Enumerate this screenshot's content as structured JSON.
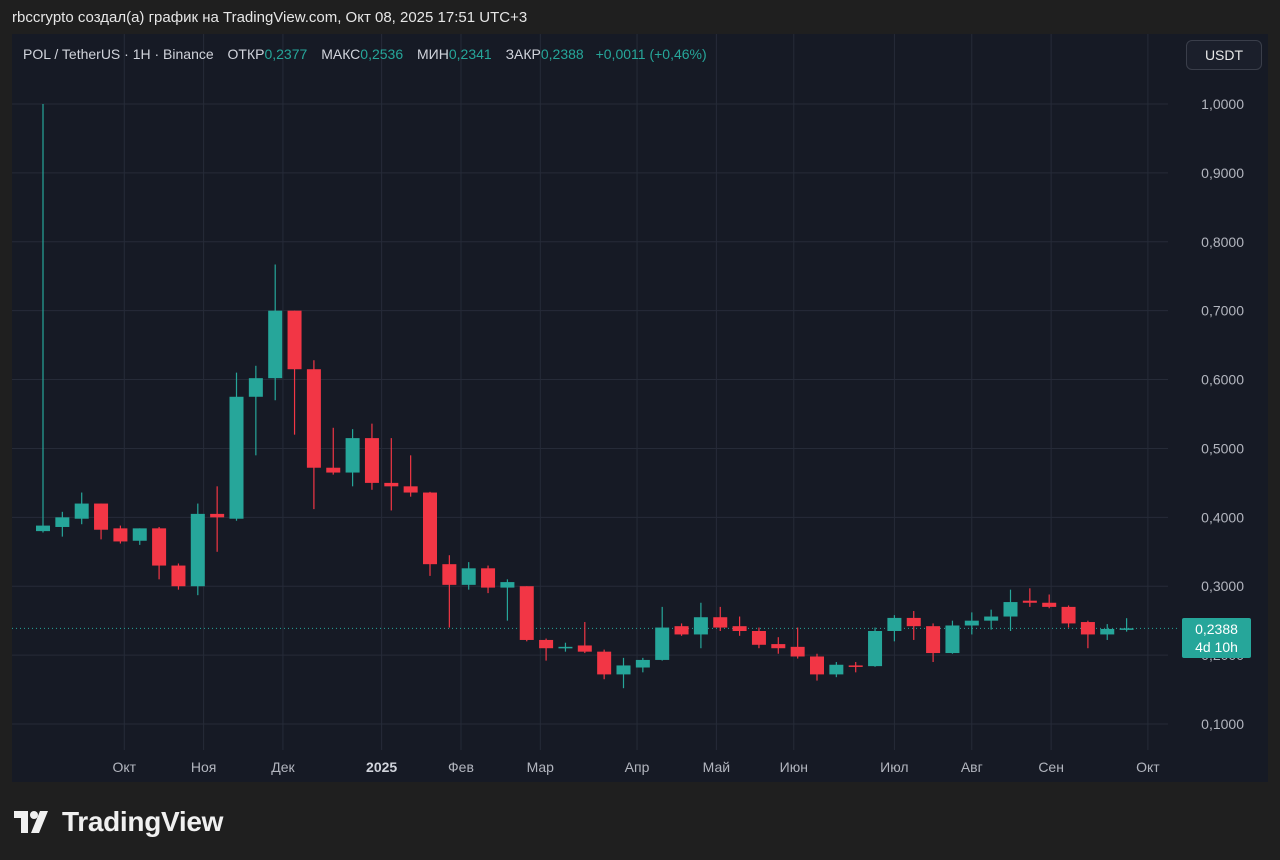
{
  "header": {
    "caption": "rbccrypto создал(а) график на TradingView.com, Окт 08, 2025 17:51 UTC+3"
  },
  "legend": {
    "symbol": "POL / TetherUS · 1H · Binance",
    "open_label": "ОТКР",
    "open_value": "0,2377",
    "high_label": "МАКС",
    "high_value": "0,2536",
    "low_label": "МИН",
    "low_value": "0,2341",
    "close_label": "ЗАКР",
    "close_value": "0,2388",
    "change": "+0,0011 (+0,46%)"
  },
  "currency_button": "USDT",
  "last_price": {
    "price": "0,2388",
    "countdown": "4d 10h",
    "value": 0.2388
  },
  "footer": {
    "brand": "TradingView"
  },
  "colors": {
    "background": "#161a25",
    "grid": "#262b38",
    "up": "#26a69a",
    "down": "#f23645",
    "text": "#b2b5be"
  },
  "chart_data": {
    "type": "candlestick",
    "ylim": [
      0.05,
      1.07
    ],
    "yticks": [
      {
        "value": 1.0,
        "label": "1,0000"
      },
      {
        "value": 0.9,
        "label": "0,9000"
      },
      {
        "value": 0.8,
        "label": "0,8000"
      },
      {
        "value": 0.7,
        "label": "0,7000"
      },
      {
        "value": 0.6,
        "label": "0,6000"
      },
      {
        "value": 0.5,
        "label": "0,5000"
      },
      {
        "value": 0.4,
        "label": "0,4000"
      },
      {
        "value": 0.3,
        "label": "0,3000"
      },
      {
        "value": 0.2,
        "label": "0,2000"
      },
      {
        "value": 0.1,
        "label": "0,1000"
      }
    ],
    "xticks": [
      {
        "index": 4.2,
        "label": "Окт"
      },
      {
        "index": 8.3,
        "label": "Ноя"
      },
      {
        "index": 12.4,
        "label": "Дек"
      },
      {
        "index": 17.5,
        "label": "2025",
        "bold": true
      },
      {
        "index": 21.6,
        "label": "Фев"
      },
      {
        "index": 25.7,
        "label": "Мар"
      },
      {
        "index": 30.7,
        "label": "Апр"
      },
      {
        "index": 34.8,
        "label": "Май"
      },
      {
        "index": 38.8,
        "label": "Июн"
      },
      {
        "index": 44.0,
        "label": "Июл"
      },
      {
        "index": 48.0,
        "label": "Авг"
      },
      {
        "index": 52.1,
        "label": "Сен"
      },
      {
        "index": 57.1,
        "label": "Окт"
      }
    ],
    "candles": [
      {
        "o": 0.38,
        "h": 1.0,
        "l": 0.378,
        "c": 0.388
      },
      {
        "o": 0.386,
        "h": 0.408,
        "l": 0.372,
        "c": 0.4
      },
      {
        "o": 0.398,
        "h": 0.436,
        "l": 0.39,
        "c": 0.42
      },
      {
        "o": 0.42,
        "h": 0.42,
        "l": 0.368,
        "c": 0.382
      },
      {
        "o": 0.384,
        "h": 0.388,
        "l": 0.362,
        "c": 0.365
      },
      {
        "o": 0.366,
        "h": 0.384,
        "l": 0.36,
        "c": 0.384
      },
      {
        "o": 0.384,
        "h": 0.386,
        "l": 0.31,
        "c": 0.33
      },
      {
        "o": 0.33,
        "h": 0.333,
        "l": 0.295,
        "c": 0.3
      },
      {
        "o": 0.3,
        "h": 0.42,
        "l": 0.287,
        "c": 0.405
      },
      {
        "o": 0.405,
        "h": 0.445,
        "l": 0.35,
        "c": 0.4
      },
      {
        "o": 0.398,
        "h": 0.61,
        "l": 0.395,
        "c": 0.575
      },
      {
        "o": 0.575,
        "h": 0.62,
        "l": 0.49,
        "c": 0.602
      },
      {
        "o": 0.602,
        "h": 0.767,
        "l": 0.57,
        "c": 0.7
      },
      {
        "o": 0.7,
        "h": 0.7,
        "l": 0.52,
        "c": 0.615
      },
      {
        "o": 0.615,
        "h": 0.628,
        "l": 0.412,
        "c": 0.472
      },
      {
        "o": 0.472,
        "h": 0.53,
        "l": 0.462,
        "c": 0.465
      },
      {
        "o": 0.465,
        "h": 0.528,
        "l": 0.445,
        "c": 0.515
      },
      {
        "o": 0.515,
        "h": 0.536,
        "l": 0.44,
        "c": 0.45
      },
      {
        "o": 0.45,
        "h": 0.515,
        "l": 0.41,
        "c": 0.445
      },
      {
        "o": 0.445,
        "h": 0.49,
        "l": 0.43,
        "c": 0.436
      },
      {
        "o": 0.436,
        "h": 0.437,
        "l": 0.315,
        "c": 0.332
      },
      {
        "o": 0.332,
        "h": 0.345,
        "l": 0.24,
        "c": 0.302
      },
      {
        "o": 0.302,
        "h": 0.335,
        "l": 0.295,
        "c": 0.326
      },
      {
        "o": 0.326,
        "h": 0.33,
        "l": 0.29,
        "c": 0.298
      },
      {
        "o": 0.298,
        "h": 0.31,
        "l": 0.25,
        "c": 0.306
      },
      {
        "o": 0.3,
        "h": 0.3,
        "l": 0.22,
        "c": 0.222
      },
      {
        "o": 0.222,
        "h": 0.224,
        "l": 0.192,
        "c": 0.21
      },
      {
        "o": 0.21,
        "h": 0.218,
        "l": 0.205,
        "c": 0.212
      },
      {
        "o": 0.214,
        "h": 0.248,
        "l": 0.203,
        "c": 0.205
      },
      {
        "o": 0.205,
        "h": 0.208,
        "l": 0.165,
        "c": 0.172
      },
      {
        "o": 0.172,
        "h": 0.196,
        "l": 0.152,
        "c": 0.185
      },
      {
        "o": 0.182,
        "h": 0.196,
        "l": 0.175,
        "c": 0.193
      },
      {
        "o": 0.193,
        "h": 0.27,
        "l": 0.192,
        "c": 0.24
      },
      {
        "o": 0.242,
        "h": 0.246,
        "l": 0.228,
        "c": 0.23
      },
      {
        "o": 0.23,
        "h": 0.276,
        "l": 0.21,
        "c": 0.255
      },
      {
        "o": 0.255,
        "h": 0.27,
        "l": 0.235,
        "c": 0.24
      },
      {
        "o": 0.242,
        "h": 0.256,
        "l": 0.228,
        "c": 0.235
      },
      {
        "o": 0.235,
        "h": 0.24,
        "l": 0.21,
        "c": 0.215
      },
      {
        "o": 0.216,
        "h": 0.226,
        "l": 0.202,
        "c": 0.21
      },
      {
        "o": 0.212,
        "h": 0.24,
        "l": 0.195,
        "c": 0.198
      },
      {
        "o": 0.198,
        "h": 0.202,
        "l": 0.163,
        "c": 0.172
      },
      {
        "o": 0.172,
        "h": 0.19,
        "l": 0.168,
        "c": 0.186
      },
      {
        "o": 0.185,
        "h": 0.19,
        "l": 0.175,
        "c": 0.184
      },
      {
        "o": 0.184,
        "h": 0.24,
        "l": 0.183,
        "c": 0.235
      },
      {
        "o": 0.235,
        "h": 0.258,
        "l": 0.22,
        "c": 0.254
      },
      {
        "o": 0.254,
        "h": 0.264,
        "l": 0.222,
        "c": 0.242
      },
      {
        "o": 0.242,
        "h": 0.246,
        "l": 0.19,
        "c": 0.203
      },
      {
        "o": 0.203,
        "h": 0.25,
        "l": 0.202,
        "c": 0.243
      },
      {
        "o": 0.243,
        "h": 0.262,
        "l": 0.23,
        "c": 0.25
      },
      {
        "o": 0.25,
        "h": 0.266,
        "l": 0.237,
        "c": 0.256
      },
      {
        "o": 0.256,
        "h": 0.295,
        "l": 0.235,
        "c": 0.277
      },
      {
        "o": 0.279,
        "h": 0.297,
        "l": 0.27,
        "c": 0.276
      },
      {
        "o": 0.276,
        "h": 0.288,
        "l": 0.268,
        "c": 0.27
      },
      {
        "o": 0.27,
        "h": 0.272,
        "l": 0.24,
        "c": 0.246
      },
      {
        "o": 0.248,
        "h": 0.25,
        "l": 0.21,
        "c": 0.23
      },
      {
        "o": 0.23,
        "h": 0.245,
        "l": 0.222,
        "c": 0.238
      },
      {
        "o": 0.2377,
        "h": 0.2536,
        "l": 0.2341,
        "c": 0.2388
      }
    ]
  }
}
